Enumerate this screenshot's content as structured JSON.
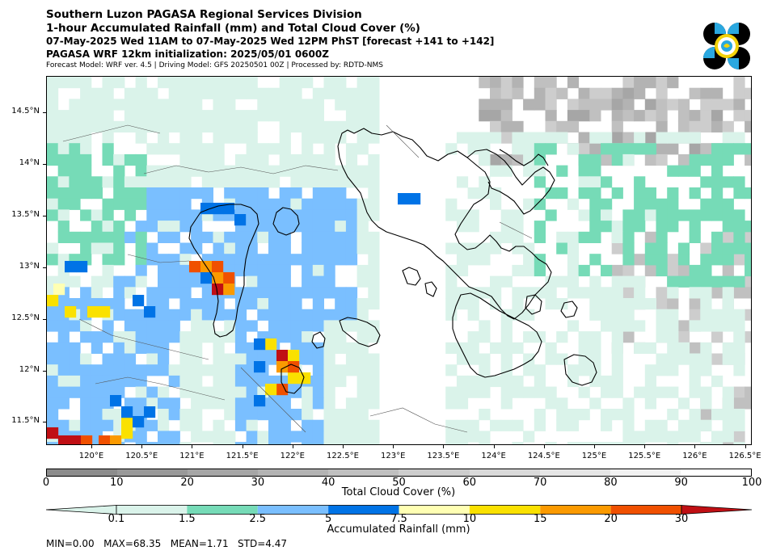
{
  "header": {
    "line1": "Southern Luzon PAGASA Regional Services Division",
    "line2": "1-hour Accumulated Rainfall (mm) and Total Cloud Cover (%)",
    "line3": "07-May-2025 Wed 11AM to 07-May-2025 Wed 12PM PhST [forecast +141 to +142]",
    "line4": "PAGASA WRF 12km initialization: 2025/05/01 0600Z",
    "line5": "Forecast Model: WRF ver. 4.5 | Driving Model: GFS 20250501 00Z | Processed by: RDTD-NMS"
  },
  "logo": {
    "name": "pagasa-logo",
    "colors": [
      "#000000",
      "#2aa8e0",
      "#f2d20a"
    ]
  },
  "map": {
    "lon_ticks": [
      "120°E",
      "120.5°E",
      "121°E",
      "121.5°E",
      "122°E",
      "122.5°E",
      "123°E",
      "123.5°E",
      "124°E",
      "124.5°E",
      "125°E",
      "125.5°E",
      "126°E",
      "126.5°E"
    ],
    "lat_ticks": [
      "14.5°N",
      "14°N",
      "13.5°N",
      "13°N",
      "12.5°N",
      "12°N",
      "11.5°N"
    ],
    "legend_layers": [
      "Total Cloud Cover",
      "Accumulated Rainfall"
    ]
  },
  "cloud_colorbar": {
    "label": "Total Cloud Cover (%)",
    "ticks": [
      "0",
      "10",
      "20",
      "30",
      "40",
      "50",
      "60",
      "70",
      "80",
      "90",
      "100"
    ],
    "colors": [
      "#8c8c8c",
      "#999999",
      "#a6a6a6",
      "#b3b3b3",
      "#c0c0c0",
      "#cdcdcd",
      "#dadada",
      "#e6e6e6",
      "#f2f2f2",
      "#ffffff"
    ]
  },
  "rain_colorbar": {
    "label": "Accumulated Rainfall (mm)",
    "ticks": [
      "0.1",
      "1.5",
      "2.5",
      "5",
      "7.5",
      "10",
      "15",
      "20",
      "30"
    ],
    "colors": [
      "#daf3ea",
      "#76dbb7",
      "#7abfff",
      "#0073e6",
      "#ffffb3",
      "#fae100",
      "#fb9a00",
      "#f05000",
      "#c00f14"
    ]
  },
  "stats": "MIN=0.00   MAX=68.35   MEAN=1.71   STD=4.47"
}
